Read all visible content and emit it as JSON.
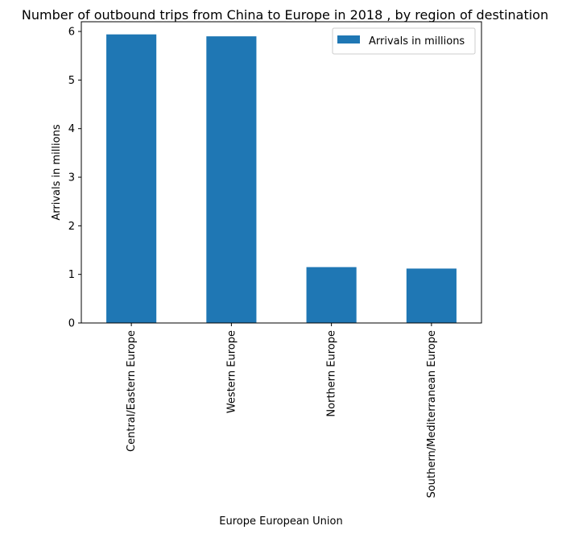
{
  "chart_data": {
    "type": "bar",
    "title": "Number of outbound trips from China to Europe in 2018 , by region of destination",
    "xlabel": "Europe European Union",
    "ylabel": "Arrivals in millions",
    "categories": [
      "Central/Eastern Europe",
      "Western Europe",
      "Northern Europe",
      "Southern/Mediterranean Europe"
    ],
    "series": [
      {
        "name": "Arrivals in millions",
        "color": "#1f77b4",
        "values": [
          5.94,
          5.9,
          1.15,
          1.12
        ]
      }
    ],
    "ylim": [
      0,
      6.2
    ],
    "yticks": [
      0,
      1,
      2,
      3,
      4,
      5,
      6
    ],
    "grid": false,
    "legend_position": "upper right"
  }
}
